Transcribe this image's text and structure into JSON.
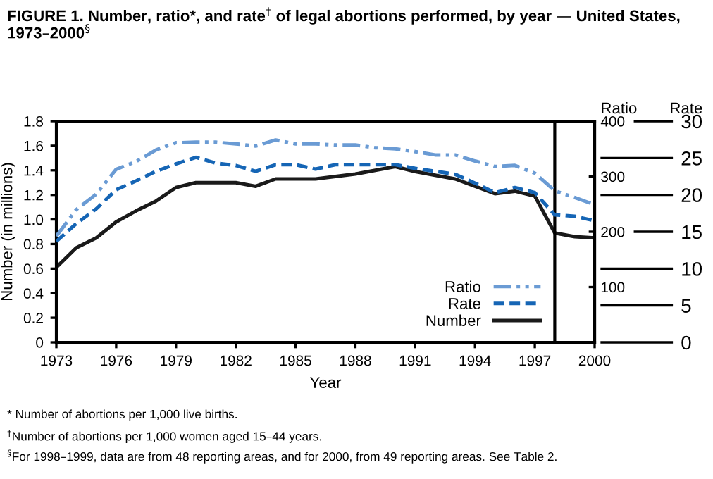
{
  "chart_data": {
    "type": "line",
    "title": "FIGURE 1. Number, ratio*, and rate$^{†}$ of legal abortions performed, by year — United States, 1973–2000$^{§}$",
    "xlabel": "Year",
    "ylabel": "Number (in millions)",
    "y2label": "Ratio",
    "y3label": "Rate",
    "x": [
      1973,
      1974,
      1975,
      1976,
      1977,
      1978,
      1979,
      1980,
      1981,
      1982,
      1983,
      1984,
      1985,
      1986,
      1987,
      1988,
      1989,
      1990,
      1991,
      1992,
      1993,
      1994,
      1995,
      1996,
      1997,
      1998,
      1999,
      2000
    ],
    "series": [
      {
        "name": "Ratio",
        "color": "#6a9bd4",
        "axis": "y2",
        "line_style": "dashdot",
        "values": [
          192,
          240,
          268,
          313,
          327,
          348,
          361,
          362,
          362,
          359,
          355,
          366,
          359,
          359,
          357,
          357,
          352,
          350,
          345,
          339,
          339,
          328,
          318,
          320,
          306,
          274,
          262,
          249
        ]
      },
      {
        "name": "Rate",
        "color": "#1565b5",
        "axis": "y3",
        "line_style": "dashed",
        "values": [
          13.7,
          16.1,
          18.1,
          20.7,
          21.9,
          23.2,
          24.2,
          25.1,
          24.3,
          24.0,
          23.2,
          24.1,
          24.1,
          23.5,
          24.1,
          24.1,
          24.1,
          24.1,
          23.6,
          23.2,
          22.8,
          21.6,
          20.3,
          21.0,
          20.3,
          17.3,
          17.1,
          16.5
        ]
      },
      {
        "name": "Number",
        "color": "#1a1a1a",
        "line_style": "solid",
        "values": [
          0.61,
          0.77,
          0.85,
          0.98,
          1.07,
          1.15,
          1.26,
          1.3,
          1.3,
          1.3,
          1.27,
          1.33,
          1.33,
          1.33,
          1.35,
          1.37,
          1.4,
          1.43,
          1.39,
          1.36,
          1.33,
          1.27,
          1.21,
          1.23,
          1.19,
          0.89,
          0.86,
          0.85
        ]
      }
    ],
    "xlim": [
      1973,
      2000
    ],
    "xticks": [
      1973,
      1976,
      1979,
      1982,
      1985,
      1988,
      1991,
      1994,
      1997,
      2000
    ],
    "ylim": [
      0,
      1.8
    ],
    "yticks": [
      {
        "value": 0,
        "label": "0"
      },
      0.2,
      0.4,
      0.6,
      0.8,
      {
        "value": 1.0,
        "label": "1.0"
      },
      1.2,
      1.4,
      1.6,
      1.8
    ],
    "y2lim": [
      0,
      400
    ],
    "y2ticks": [
      100,
      200,
      300,
      400
    ],
    "y3lim": [
      0,
      30
    ],
    "y3ticks": [
      0,
      5,
      10,
      15,
      20,
      25,
      30
    ],
    "ref_lines": [
      {
        "axis": "x",
        "value": 1998,
        "color": "#000000"
      }
    ],
    "legend": "bottom right",
    "grid": false,
    "marker": "none",
    "annotations": [
      "* Number of abortions per 1,000 live births.",
      "$^{†}$Number of abortions per 1,000 women aged 15–44 years.",
      "$^{§}$For 1998–1999, data are from 48 reporting areas, and for 2000, from 49 reporting areas. See Table 2."
    ]
  }
}
